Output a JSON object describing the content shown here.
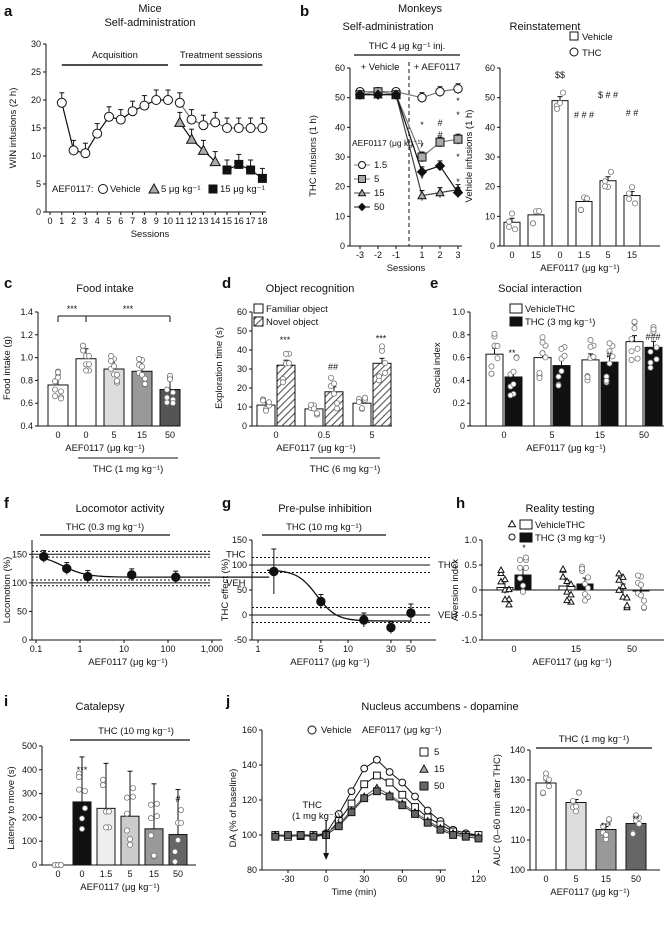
{
  "figure": {
    "panel_letters": [
      "a",
      "b",
      "c",
      "d",
      "e",
      "f",
      "g",
      "h",
      "i",
      "j"
    ]
  },
  "chart_data": [
    {
      "id": "a",
      "type": "line",
      "title": "Mice",
      "subtitle": "Self-administration",
      "ylabel": "WIN infusions (2 h)",
      "xlabel": "Sessions",
      "ylim": [
        0,
        30
      ],
      "yticks": [
        0,
        5,
        10,
        15,
        20,
        25,
        30
      ],
      "xticks": [
        "0",
        "1",
        "2",
        "3",
        "4",
        "5",
        "6",
        "7",
        "8",
        "9",
        "10",
        "11",
        "12",
        "13",
        "14",
        "15",
        "16",
        "17",
        "18"
      ],
      "annotations": [
        "Acquisition",
        "Treatment sessions"
      ],
      "legend": {
        "prefix": "AEF0117:",
        "items": [
          "Vehicle",
          "5 μg kg⁻¹",
          "15 μg kg⁻¹"
        ]
      },
      "series": [
        {
          "name": "Acquisition",
          "x": [
            1,
            2,
            3,
            4,
            5,
            6,
            7,
            8,
            9,
            10
          ],
          "values": [
            19.5,
            11,
            10.5,
            14,
            17,
            16.5,
            18,
            19,
            20,
            20
          ]
        },
        {
          "name": "Vehicle",
          "x": [
            11,
            12,
            13,
            14,
            15,
            16,
            17,
            18
          ],
          "values": [
            19.5,
            16.5,
            15.5,
            16,
            15,
            15,
            15,
            15
          ]
        },
        {
          "name": "5 μg kg⁻¹",
          "x": [
            11,
            12,
            13,
            14
          ],
          "values": [
            16,
            13,
            11,
            9
          ]
        },
        {
          "name": "15 μg kg⁻¹",
          "x": [
            15,
            16,
            17,
            18
          ],
          "values": [
            7.5,
            8.5,
            7.5,
            6
          ]
        }
      ]
    },
    {
      "id": "b1",
      "type": "line",
      "title": "Monkeys",
      "subtitle": "Self-administration",
      "ylabel": "THC infusions (1 h)",
      "xlabel": "Sessions",
      "ylim": [
        0,
        60
      ],
      "yticks": [
        0,
        10,
        20,
        30,
        40,
        50,
        60
      ],
      "xticks": [
        "-3",
        "-2",
        "-1",
        "1",
        "2",
        "3"
      ],
      "annotations": [
        "THC 4 μg kg⁻¹ inj.",
        "+ Vehicle",
        "+ AEF0117"
      ],
      "legend": {
        "title": "AEF0117 (μg kg⁻¹)",
        "items": [
          "1.5",
          "5",
          "15",
          "50"
        ]
      },
      "series": [
        {
          "name": "1.5",
          "values": [
            52,
            52,
            52,
            50,
            52,
            53
          ]
        },
        {
          "name": "5",
          "values": [
            51,
            52,
            51,
            30,
            35,
            36
          ]
        },
        {
          "name": "15",
          "values": [
            51,
            51,
            51,
            17,
            18,
            19
          ]
        },
        {
          "name": "50",
          "values": [
            51,
            51,
            51,
            25,
            27,
            18
          ]
        }
      ],
      "significance": [
        "*",
        "#",
        "*",
        "#",
        "*",
        "*",
        "*",
        "*",
        "*",
        "*"
      ]
    },
    {
      "id": "b2",
      "type": "bar",
      "title": "Reinstatement",
      "ylabel": "Vehicle infusions (1 h)",
      "xlabel": "AEF0117 (μg kg⁻¹)",
      "ylim": [
        0,
        60
      ],
      "yticks": [
        0,
        10,
        20,
        30,
        40,
        50,
        60
      ],
      "categories": [
        "0",
        "15",
        "0",
        "1.5",
        "5",
        "15"
      ],
      "values": [
        8,
        10.5,
        49,
        15,
        22,
        17
      ],
      "legend": [
        "Vehicle",
        "THC"
      ],
      "significance": [
        "$$",
        "# # #",
        "$ # #",
        "# #"
      ]
    },
    {
      "id": "c",
      "type": "bar",
      "title": "Food intake",
      "ylabel": "Food intake (g)",
      "xlabel": "AEF0117 (μg kg⁻¹)",
      "ylim": [
        0.4,
        1.4
      ],
      "yticks": [
        "0.4",
        "0.6",
        "0.8",
        "1.0",
        "1.2",
        "1.4"
      ],
      "categories": [
        "0",
        "0",
        "5",
        "15",
        "50"
      ],
      "values": [
        0.76,
        0.99,
        0.9,
        0.88,
        0.72
      ],
      "underlabel": "THC (1 mg kg⁻¹)",
      "significance": [
        "***",
        "***"
      ]
    },
    {
      "id": "d",
      "type": "bar",
      "title": "Object recognition",
      "ylabel": "Exploration time (s)",
      "xlabel": "AEF0117 (μg kg⁻¹)",
      "ylim": [
        0,
        60
      ],
      "yticks": [
        0,
        10,
        20,
        30,
        40,
        50,
        60
      ],
      "categories": [
        "0",
        "0.5",
        "5"
      ],
      "series": [
        {
          "name": "Familiar object",
          "values": [
            11,
            9,
            12
          ]
        },
        {
          "name": "Novel object",
          "values": [
            32,
            18,
            33
          ]
        }
      ],
      "underlabel": "THC (6 mg kg⁻¹)",
      "significance": [
        "***",
        "##",
        "***"
      ]
    },
    {
      "id": "e",
      "type": "bar",
      "title": "Social interaction",
      "ylabel": "Social index",
      "xlabel": "AEF0117 (μg kg⁻¹)",
      "ylim": [
        0,
        1.0
      ],
      "yticks": [
        "0",
        "0.2",
        "0.4",
        "0.6",
        "0.8",
        "1.0"
      ],
      "categories": [
        "0",
        "5",
        "15",
        "50"
      ],
      "series": [
        {
          "name": "VehicleTHC",
          "values": [
            0.63,
            0.6,
            0.58,
            0.74
          ]
        },
        {
          "name": "THC (3 mg kg⁻¹)",
          "values": [
            0.43,
            0.53,
            0.56,
            0.69
          ]
        }
      ],
      "significance": [
        "**",
        "#",
        "###"
      ]
    },
    {
      "id": "f",
      "type": "line",
      "title": "Locomotor activity",
      "ylabel": "Locomotion (%)",
      "xlabel": "AEF0117 (μg kg⁻¹)",
      "ylim": [
        0,
        175
      ],
      "yticks": [
        0,
        50,
        100,
        150
      ],
      "xticks": [
        "0.1",
        "1",
        "10",
        "100",
        "1,000"
      ],
      "x": [
        0.15,
        0.5,
        1.5,
        15,
        150
      ],
      "values": [
        146,
        125,
        111,
        114,
        110
      ],
      "annotations": [
        "THC (0.3 mg kg⁻¹)",
        "THC",
        "VEH"
      ]
    },
    {
      "id": "g",
      "type": "line",
      "title": "Pre-pulse inhibition",
      "ylabel": "THC effect (%)",
      "xlabel": "AEF0117 (μg kg⁻¹)",
      "ylim": [
        -50,
        150
      ],
      "yticks": [
        -50,
        0,
        50,
        100,
        150
      ],
      "xticks": [
        "1",
        "5",
        "10",
        "30",
        "50"
      ],
      "x": [
        1.5,
        5,
        15,
        30,
        50
      ],
      "values": [
        87,
        27,
        -10,
        -25,
        4
      ],
      "annotations": [
        "THC (10 mg kg⁻¹)",
        "THC",
        "VEH"
      ]
    },
    {
      "id": "h",
      "type": "bar",
      "title": "Reality testing",
      "ylabel": "Aversion index",
      "xlabel": "AEF0117 (μg kg⁻¹)",
      "ylim": [
        -1.0,
        1.0
      ],
      "yticks": [
        "-1.0",
        "-0.5",
        "0",
        "0.5",
        "1.0"
      ],
      "categories": [
        "0",
        "15",
        "50"
      ],
      "series": [
        {
          "name": "VehicleTHC",
          "values": [
            0.05,
            0.08,
            0.0
          ]
        },
        {
          "name": "THC (3 mg kg⁻¹)",
          "values": [
            0.3,
            0.12,
            -0.02
          ]
        }
      ],
      "significance": [
        "*"
      ]
    },
    {
      "id": "i",
      "type": "bar",
      "title": "Catalepsy",
      "ylabel": "Latency to move (s)",
      "xlabel": "AEF0117 (μg kg⁻¹)",
      "ylim": [
        0,
        500
      ],
      "yticks": [
        0,
        100,
        200,
        300,
        400,
        500
      ],
      "categories": [
        "0",
        "0",
        "1.5",
        "5",
        "15",
        "50"
      ],
      "values": [
        0,
        265,
        238,
        205,
        152,
        128
      ],
      "underlabel": "THC (10 mg kg⁻¹)",
      "significance": [
        "***",
        "#"
      ]
    },
    {
      "id": "j1",
      "type": "line",
      "title": "Nucleus accumbens - dopamine",
      "ylabel": "DA (% of baseline)",
      "xlabel": "Time (min)",
      "ylim": [
        80,
        160
      ],
      "yticks": [
        80,
        100,
        120,
        140,
        160
      ],
      "xticks": [
        "-30",
        "0",
        "30",
        "60",
        "90",
        "120"
      ],
      "legend": {
        "prefix": "AEF0117 (μg kg⁻¹)",
        "items": [
          "Vehicle",
          "5",
          "15",
          "50"
        ]
      },
      "annotations": [
        "THC",
        "(1 mg kg⁻¹)"
      ],
      "x": [
        -40,
        -30,
        -20,
        -10,
        0,
        10,
        20,
        30,
        40,
        50,
        60,
        70,
        80,
        90,
        100,
        110,
        120
      ],
      "series": [
        {
          "name": "Vehicle",
          "values": [
            100,
            100,
            100,
            99,
            101,
            112,
            125,
            138,
            143,
            136,
            130,
            122,
            114,
            108,
            103,
            101,
            100
          ]
        },
        {
          "name": "5",
          "values": [
            100,
            99,
            100,
            100,
            100,
            108,
            118,
            129,
            134,
            130,
            123,
            116,
            110,
            106,
            102,
            100,
            100
          ]
        },
        {
          "name": "15",
          "values": [
            100,
            100,
            99,
            100,
            101,
            106,
            114,
            122,
            127,
            123,
            118,
            113,
            108,
            104,
            101,
            100,
            99
          ]
        },
        {
          "name": "50",
          "values": [
            99,
            100,
            100,
            99,
            100,
            105,
            113,
            121,
            125,
            122,
            117,
            112,
            107,
            103,
            100,
            99,
            98
          ]
        }
      ]
    },
    {
      "id": "j2",
      "type": "bar",
      "ylabel": "AUC (0–60 min after THC)",
      "xlabel": "AEF0117 (μg kg⁻¹)",
      "ylim": [
        100,
        140
      ],
      "yticks": [
        100,
        110,
        120,
        130,
        140
      ],
      "categories": [
        "0",
        "5",
        "15",
        "50"
      ],
      "values": [
        129,
        122.5,
        113.5,
        115.5
      ],
      "underlabel": "THC (1 mg kg⁻¹)",
      "significance": [
        "***",
        "**"
      ]
    }
  ]
}
